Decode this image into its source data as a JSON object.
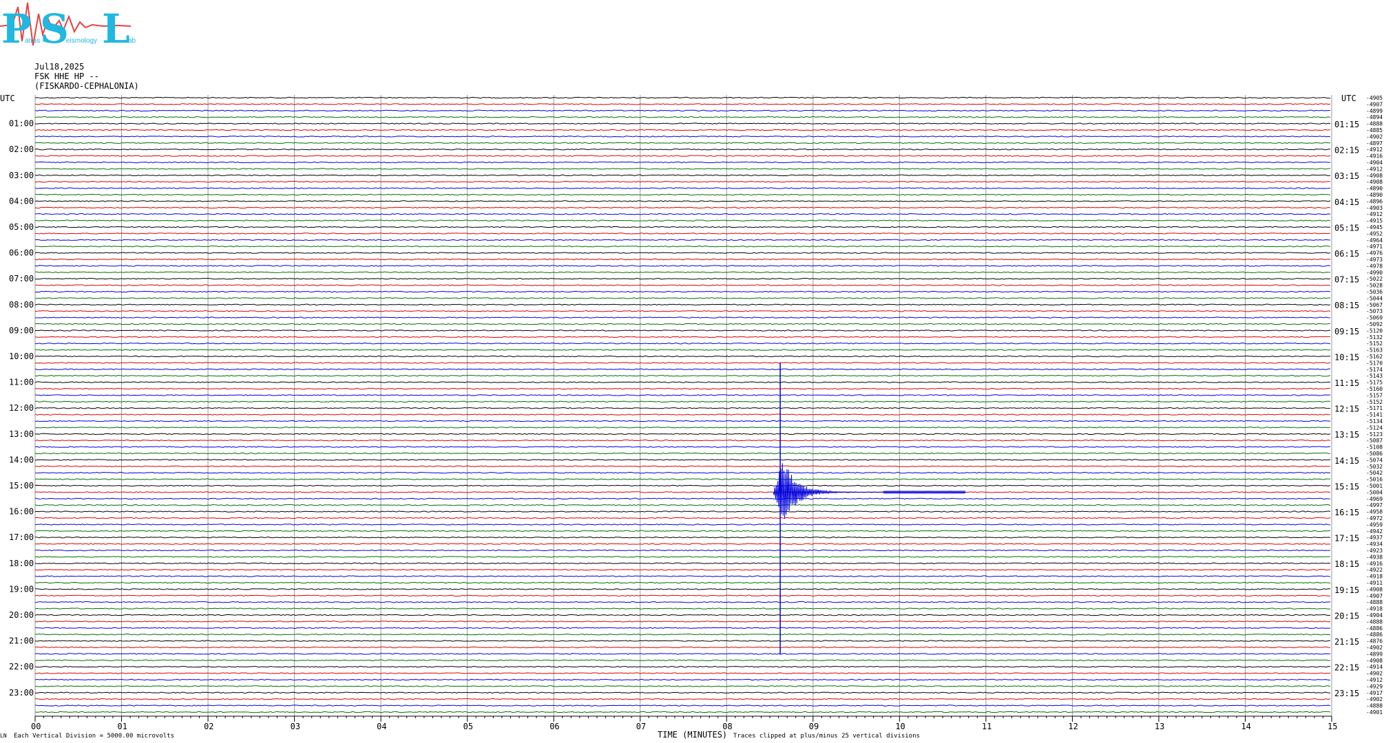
{
  "logo": {
    "big_letters": [
      "P",
      "S",
      "L"
    ],
    "small_words": [
      "atras",
      "eismology",
      "ab"
    ],
    "accent": "#20b8e0",
    "wave_color": "#e84040"
  },
  "header": {
    "date": "Jul18,2025",
    "station": "FSK HHE HP --",
    "location": "(FISKARDO-CEPHALONIA)"
  },
  "chart_data": {
    "type": "line",
    "title": "",
    "xlabel": "TIME (MINUTES)",
    "left_axis_title": "UTC",
    "right_axis_title": "UTC",
    "xlim": [
      0,
      15
    ],
    "x_ticks": [
      "00",
      "01",
      "02",
      "03",
      "04",
      "05",
      "06",
      "07",
      "08",
      "09",
      "10",
      "11",
      "12",
      "13",
      "14",
      "15"
    ],
    "rows_per_hour": 4,
    "row_minutes": 15,
    "hours": 24,
    "left_labels": [
      "01:00",
      "02:00",
      "03:00",
      "04:00",
      "05:00",
      "06:00",
      "07:00",
      "08:00",
      "09:00",
      "10:00",
      "11:00",
      "12:00",
      "13:00",
      "14:00",
      "15:00",
      "16:00",
      "17:00",
      "18:00",
      "19:00",
      "20:00",
      "21:00",
      "22:00",
      "23:00"
    ],
    "right_labels": [
      "01:15",
      "02:15",
      "03:15",
      "04:15",
      "05:15",
      "06:15",
      "07:15",
      "08:15",
      "09:15",
      "10:15",
      "11:15",
      "12:15",
      "13:15",
      "14:15",
      "15:15",
      "16:15",
      "17:15",
      "18:15",
      "19:15",
      "20:15",
      "21:15",
      "22:15",
      "23:15"
    ],
    "row_values": [
      "-4905",
      "-4907",
      "-4899",
      "-4894",
      "-4888",
      "-4885",
      "-4902",
      "-4897",
      "-4912",
      "-4916",
      "-4904",
      "-4912",
      "-4908",
      "-4908",
      "-4890",
      "-4890",
      "-4896",
      "-4903",
      "-4912",
      "-4915",
      "-4945",
      "-4952",
      "-4964",
      "-4971",
      "-4976",
      "-4973",
      "-4978",
      "-4990",
      "-5022",
      "-5028",
      "-5036",
      "-5044",
      "-5067",
      "-5073",
      "-5069",
      "-5092",
      "-5120",
      "-5132",
      "-5152",
      "-5163",
      "-5162",
      "-5170",
      "-5174",
      "-5143",
      "-5175",
      "-5160",
      "-5157",
      "-5152",
      "-5171",
      "-5141",
      "-5134",
      "-5124",
      "-5123",
      "-5087",
      "-5108",
      "-5086",
      "-5074",
      "-5032",
      "-5042",
      "-5016",
      "-5001",
      "-5004",
      "-4969",
      "-4997",
      "-4958",
      "-4972",
      "-4959",
      "-4942",
      "-4937",
      "-4934",
      "-4923",
      "-4938",
      "-4916",
      "-4922",
      "-4918",
      "-4911",
      "-4908",
      "-4907",
      "-4888",
      "-4918",
      "-4904",
      "-4888",
      "-4886",
      "-4886",
      "-4876",
      "-4902",
      "-4899",
      "-4908",
      "-4914",
      "-4902",
      "-4912",
      "-4929",
      "-4917",
      "-4902",
      "-4888",
      "-4901"
    ],
    "trace_colors": [
      "#000000",
      "#e00000",
      "#0000dd",
      "#007000"
    ],
    "grid": true,
    "event": {
      "minute": 8.62,
      "peak_row": 61,
      "first_row": 41,
      "last_row": 86
    },
    "scale_note": "Each Vertical Division = 5000.00 microvolts",
    "clip_note": "Traces clipped at plus/minus 25 vertical divisions",
    "corner_mark": "LN"
  }
}
